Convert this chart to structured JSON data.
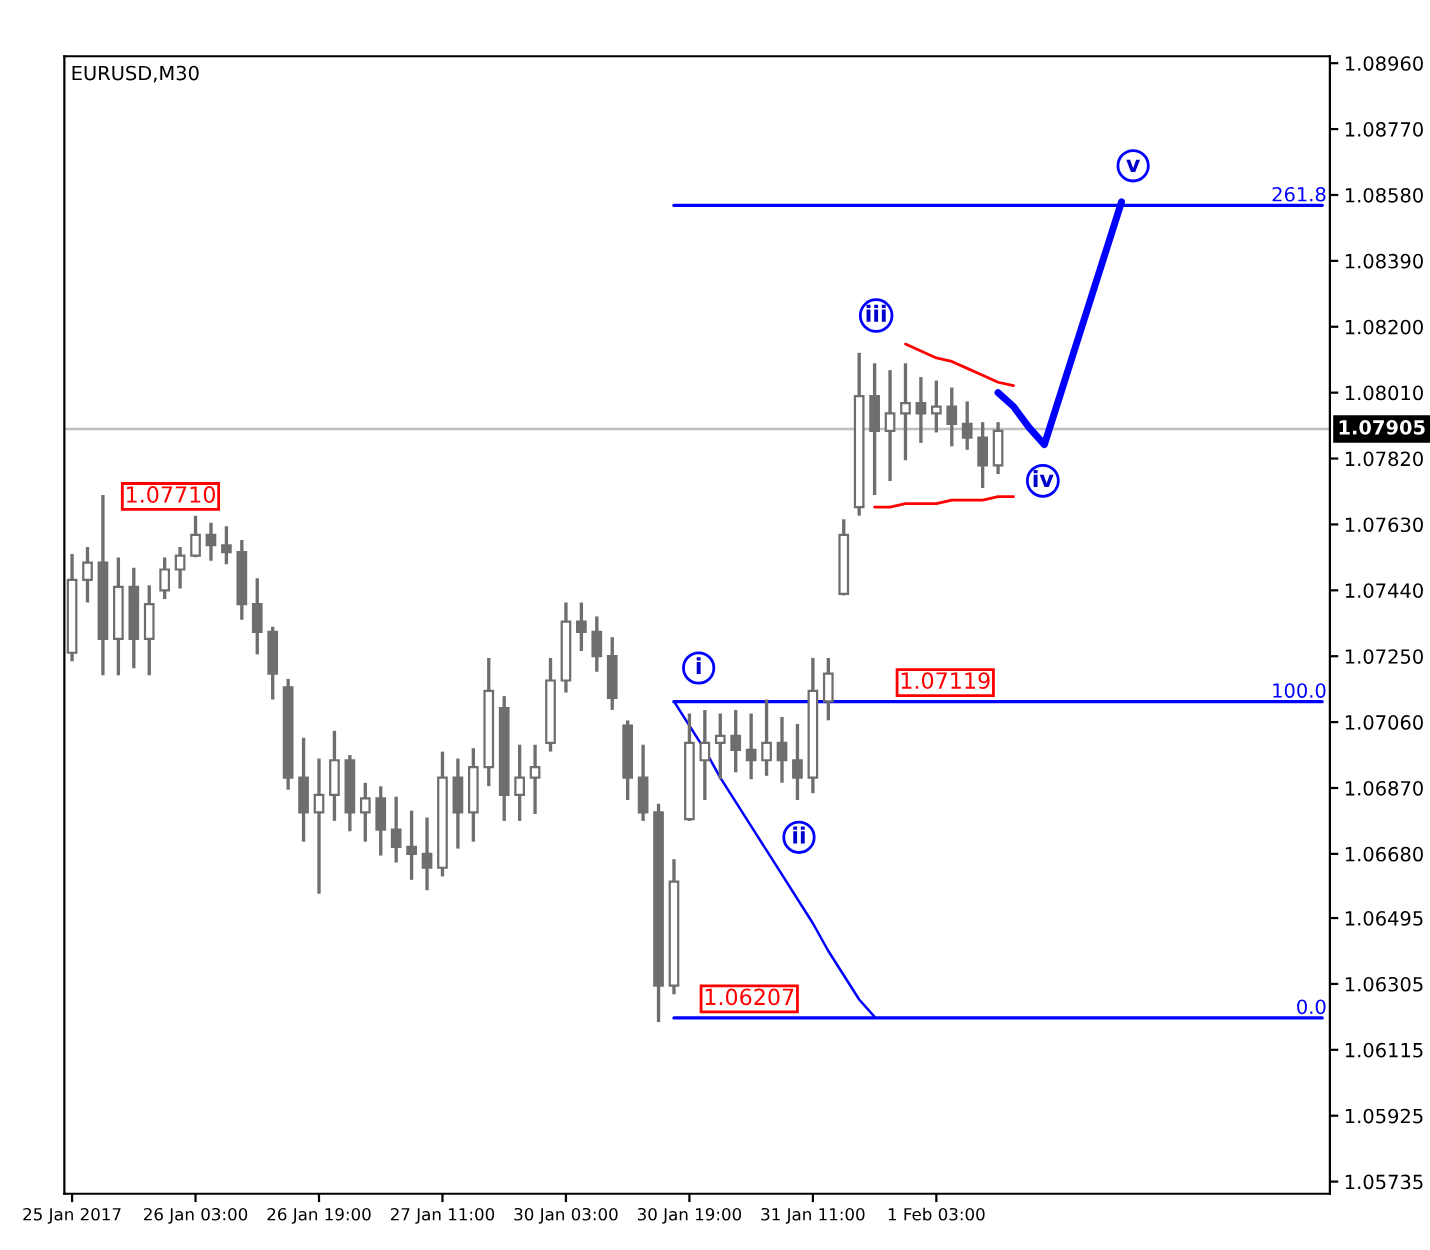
{
  "chart_data": {
    "type": "candlestick",
    "title": "EURUSD,M30",
    "color": "#6e6e6e",
    "categories": [
      "25 Jan 2017",
      null,
      null,
      null,
      null,
      null,
      null,
      null,
      "26 Jan 03:00",
      null,
      null,
      null,
      null,
      null,
      null,
      null,
      "26 Jan 19:00",
      null,
      null,
      null,
      null,
      null,
      null,
      null,
      "27 Jan 11:00",
      null,
      null,
      null,
      null,
      null,
      null,
      null,
      "30 Jan 03:00",
      null,
      null,
      null,
      null,
      null,
      null,
      null,
      "30 Jan 19:00",
      null,
      null,
      null,
      null,
      null,
      null,
      null,
      "31 Jan 11:00",
      null,
      null,
      null,
      null,
      null,
      null,
      null,
      "1 Feb 03:00",
      null,
      null,
      null,
      null,
      null,
      null,
      null,
      null,
      null,
      null,
      null,
      null,
      null,
      null,
      null,
      null,
      null,
      null,
      null,
      null,
      null,
      null,
      null,
      null,
      null
    ],
    "ohlc": [
      [
        1.0726,
        1.0754,
        1.0724,
        1.0747
      ],
      [
        1.0747,
        1.0756,
        1.0741,
        1.0752
      ],
      [
        1.0752,
        1.0771,
        1.072,
        1.073
      ],
      [
        1.073,
        1.0753,
        1.072,
        1.0745
      ],
      [
        1.0745,
        1.075,
        1.0722,
        1.073
      ],
      [
        1.073,
        1.0745,
        1.072,
        1.074
      ],
      [
        1.0744,
        1.0753,
        1.0742,
        1.075
      ],
      [
        1.075,
        1.0756,
        1.0745,
        1.0754
      ],
      [
        1.0754,
        1.0765,
        1.0754,
        1.076
      ],
      [
        1.076,
        1.0763,
        1.0753,
        1.0757
      ],
      [
        1.0757,
        1.0762,
        1.0752,
        1.0755
      ],
      [
        1.0755,
        1.0758,
        1.0736,
        1.074
      ],
      [
        1.074,
        1.0747,
        1.0726,
        1.0732
      ],
      [
        1.0732,
        1.0733,
        1.0713,
        1.072
      ],
      [
        1.0716,
        1.0718,
        1.0687,
        1.069
      ],
      [
        1.069,
        1.0701,
        1.0672,
        1.068
      ],
      [
        1.068,
        1.0695,
        1.0657,
        1.0685
      ],
      [
        1.0685,
        1.0703,
        1.0678,
        1.0695
      ],
      [
        1.0695,
        1.0696,
        1.0675,
        1.068
      ],
      [
        1.068,
        1.0688,
        1.0672,
        1.0684
      ],
      [
        1.0684,
        1.0687,
        1.0668,
        1.0675
      ],
      [
        1.0675,
        1.0684,
        1.0666,
        1.067
      ],
      [
        1.067,
        1.068,
        1.0661,
        1.0668
      ],
      [
        1.0668,
        1.0678,
        1.0658,
        1.0664
      ],
      [
        1.0664,
        1.0697,
        1.0662,
        1.069
      ],
      [
        1.069,
        1.0695,
        1.067,
        1.068
      ],
      [
        1.068,
        1.0698,
        1.0672,
        1.0693
      ],
      [
        1.0693,
        1.0724,
        1.0688,
        1.0715
      ],
      [
        1.071,
        1.0713,
        1.0678,
        1.0685
      ],
      [
        1.0685,
        1.0699,
        1.0678,
        1.069
      ],
      [
        1.069,
        1.0699,
        1.068,
        1.0693
      ],
      [
        1.07,
        1.0724,
        1.0698,
        1.0718
      ],
      [
        1.0718,
        1.074,
        1.0715,
        1.0735
      ],
      [
        1.0735,
        1.074,
        1.0727,
        1.0732
      ],
      [
        1.0732,
        1.0736,
        1.0721,
        1.0725
      ],
      [
        1.0725,
        1.073,
        1.071,
        1.0713
      ],
      [
        1.0705,
        1.0706,
        1.0684,
        1.069
      ],
      [
        1.069,
        1.0699,
        1.0678,
        1.068
      ],
      [
        1.068,
        1.0682,
        1.062,
        1.063
      ],
      [
        1.063,
        1.0666,
        1.0628,
        1.066
      ],
      [
        1.0678,
        1.0708,
        1.0678,
        1.07
      ],
      [
        1.0695,
        1.0709,
        1.0684,
        1.07
      ],
      [
        1.07,
        1.0708,
        1.069,
        1.0702
      ],
      [
        1.0702,
        1.0709,
        1.0692,
        1.0698
      ],
      [
        1.0698,
        1.0708,
        1.069,
        1.0695
      ],
      [
        1.0695,
        1.0712,
        1.0691,
        1.07
      ],
      [
        1.07,
        1.0707,
        1.0689,
        1.0695
      ],
      [
        1.0695,
        1.0705,
        1.0684,
        1.069
      ],
      [
        1.069,
        1.0724,
        1.0686,
        1.0715
      ],
      [
        1.0712,
        1.0724,
        1.0707,
        1.072
      ],
      [
        1.0743,
        1.0764,
        1.0743,
        1.076
      ],
      [
        1.0768,
        1.0812,
        1.0766,
        1.08
      ],
      [
        1.08,
        1.0809,
        1.0772,
        1.079
      ],
      [
        1.079,
        1.0807,
        1.0776,
        1.0795
      ],
      [
        1.0795,
        1.0809,
        1.0782,
        1.0798
      ],
      [
        1.0798,
        1.0805,
        1.0787,
        1.0795
      ],
      [
        1.0795,
        1.0804,
        1.079,
        1.0797
      ],
      [
        1.0797,
        1.0802,
        1.0786,
        1.0792
      ],
      [
        1.0792,
        1.0798,
        1.0785,
        1.0788
      ],
      [
        1.0788,
        1.0792,
        1.0774,
        1.078
      ],
      [
        1.078,
        1.0792,
        1.0778,
        1.079
      ],
      null,
      null,
      null,
      null,
      null,
      null,
      null,
      null,
      null,
      null,
      null,
      null,
      null,
      null,
      null,
      null,
      null,
      null,
      null,
      null,
      null
    ],
    "series": [
      {
        "type": "line",
        "name": "261.8",
        "color": "#0000ff",
        "values": [
          null,
          null,
          null,
          null,
          null,
          null,
          null,
          null,
          null,
          null,
          null,
          null,
          null,
          null,
          null,
          null,
          null,
          null,
          null,
          null,
          null,
          null,
          null,
          null,
          null,
          null,
          null,
          null,
          null,
          null,
          null,
          null,
          null,
          null,
          null,
          null,
          null,
          null,
          null,
          1.0855,
          1.0855,
          1.0855,
          1.0855,
          1.0855,
          1.0855,
          1.0855,
          1.0855,
          1.0855,
          1.0855,
          1.0855,
          1.0855,
          1.0855,
          1.0855,
          1.0855,
          1.0855,
          1.0855,
          1.0855,
          1.0855,
          1.0855,
          1.0855,
          1.0855,
          1.0855,
          1.0855,
          1.0855,
          1.0855,
          1.0855,
          1.0855,
          1.0855,
          1.0855,
          1.0855,
          1.0855,
          1.0855,
          1.0855,
          1.0855,
          1.0855,
          1.0855,
          1.0855,
          1.0855,
          1.0855,
          1.0855,
          1.0855,
          1.0855
        ]
      },
      {
        "type": "line",
        "name": "100.0",
        "color": "#0000ff",
        "values": [
          null,
          null,
          null,
          null,
          null,
          null,
          null,
          null,
          null,
          null,
          null,
          null,
          null,
          null,
          null,
          null,
          null,
          null,
          null,
          null,
          null,
          null,
          null,
          null,
          null,
          null,
          null,
          null,
          null,
          null,
          null,
          null,
          null,
          null,
          null,
          null,
          null,
          null,
          null,
          1.07119,
          1.07119,
          1.07119,
          1.07119,
          1.07119,
          1.07119,
          1.07119,
          1.07119,
          1.07119,
          1.07119,
          1.07119,
          1.07119,
          1.07119,
          1.07119,
          1.07119,
          1.07119,
          1.07119,
          1.07119,
          1.07119,
          1.07119,
          1.07119,
          1.07119,
          1.07119,
          1.07119,
          1.07119,
          1.07119,
          1.07119,
          1.07119,
          1.07119,
          1.07119,
          1.07119,
          1.07119,
          1.07119,
          1.07119,
          1.07119,
          1.07119,
          1.07119,
          1.07119,
          1.07119,
          1.07119,
          1.07119,
          1.07119,
          1.07119
        ]
      },
      {
        "type": "line",
        "name": "0.0",
        "color": "#0000ff",
        "values": [
          null,
          null,
          null,
          null,
          null,
          null,
          null,
          null,
          null,
          null,
          null,
          null,
          null,
          null,
          null,
          null,
          null,
          null,
          null,
          null,
          null,
          null,
          null,
          null,
          null,
          null,
          null,
          null,
          null,
          null,
          null,
          null,
          null,
          null,
          null,
          null,
          null,
          null,
          null,
          1.06207,
          1.06207,
          1.06207,
          1.06207,
          1.06207,
          1.06207,
          1.06207,
          1.06207,
          1.06207,
          1.06207,
          1.06207,
          1.06207,
          1.06207,
          1.06207,
          1.06207,
          1.06207,
          1.06207,
          1.06207,
          1.06207,
          1.06207,
          1.06207,
          1.06207,
          1.06207,
          1.06207,
          1.06207,
          1.06207,
          1.06207,
          1.06207,
          1.06207,
          1.06207,
          1.06207,
          1.06207,
          1.06207,
          1.06207,
          1.06207,
          1.06207,
          1.06207,
          1.06207,
          1.06207,
          1.06207,
          1.06207,
          1.06207,
          1.06207
        ]
      },
      {
        "type": "line",
        "color": "#0000ff",
        "values": [
          null,
          null,
          null,
          null,
          null,
          null,
          null,
          null,
          null,
          null,
          null,
          null,
          null,
          null,
          null,
          null,
          null,
          null,
          null,
          null,
          null,
          null,
          null,
          null,
          null,
          null,
          null,
          null,
          null,
          null,
          null,
          null,
          null,
          null,
          null,
          null,
          null,
          null,
          null,
          1.0712,
          1.0705,
          1.0698,
          1.069,
          1.0683,
          1.0676,
          1.0669,
          1.0662,
          1.0655,
          1.0648,
          1.064,
          1.0633,
          1.0626,
          1.0621,
          null,
          null,
          null,
          null,
          null,
          null,
          null,
          null,
          null,
          null,
          null,
          null,
          null,
          null,
          null,
          null,
          null,
          null,
          null,
          null,
          null,
          null,
          null,
          null,
          null,
          null,
          null,
          null,
          null
        ]
      },
      {
        "type": "line",
        "color": "#ff0000",
        "values": [
          null,
          null,
          null,
          null,
          null,
          null,
          null,
          null,
          null,
          null,
          null,
          null,
          null,
          null,
          null,
          null,
          null,
          null,
          null,
          null,
          null,
          null,
          null,
          null,
          null,
          null,
          null,
          null,
          null,
          null,
          null,
          null,
          null,
          null,
          null,
          null,
          null,
          null,
          null,
          null,
          null,
          null,
          null,
          null,
          null,
          null,
          null,
          null,
          null,
          null,
          null,
          null,
          null,
          null,
          1.0815,
          1.0813,
          1.0811,
          1.081,
          1.0808,
          1.0806,
          1.0804,
          1.0803,
          null,
          null,
          null,
          null,
          null,
          null,
          null,
          null,
          null,
          null,
          null,
          null,
          null,
          null,
          null,
          null,
          null,
          null,
          null,
          null
        ]
      },
      {
        "type": "line",
        "color": "#ff0000",
        "values": [
          null,
          null,
          null,
          null,
          null,
          null,
          null,
          null,
          null,
          null,
          null,
          null,
          null,
          null,
          null,
          null,
          null,
          null,
          null,
          null,
          null,
          null,
          null,
          null,
          null,
          null,
          null,
          null,
          null,
          null,
          null,
          null,
          null,
          null,
          null,
          null,
          null,
          null,
          null,
          null,
          null,
          null,
          null,
          null,
          null,
          null,
          null,
          null,
          null,
          null,
          null,
          null,
          1.0768,
          1.0768,
          1.0769,
          1.0769,
          1.0769,
          1.077,
          1.077,
          1.077,
          1.0771,
          1.0771,
          null,
          null,
          null,
          null,
          null,
          null,
          null,
          null,
          null,
          null,
          null,
          null,
          null,
          null,
          null,
          null,
          null,
          null,
          null,
          null
        ]
      },
      {
        "type": "line",
        "color": "#0000ff",
        "values": [
          null,
          null,
          null,
          null,
          null,
          null,
          null,
          null,
          null,
          null,
          null,
          null,
          null,
          null,
          null,
          null,
          null,
          null,
          null,
          null,
          null,
          null,
          null,
          null,
          null,
          null,
          null,
          null,
          null,
          null,
          null,
          null,
          null,
          null,
          null,
          null,
          null,
          null,
          null,
          null,
          null,
          null,
          null,
          null,
          null,
          null,
          null,
          null,
          null,
          null,
          null,
          null,
          null,
          null,
          null,
          null,
          null,
          null,
          null,
          null,
          1.0801,
          1.0797,
          1.0791,
          1.0786,
          1.08,
          1.0814,
          1.0828,
          1.0842,
          1.0856,
          null,
          null,
          null,
          null,
          null,
          null,
          null,
          null,
          null,
          null,
          null,
          null,
          null
        ]
      }
    ],
    "ref_lines": [
      {
        "axis": "y",
        "value": 1.07905,
        "label": "1.07905",
        "color": "#c0c0c0"
      }
    ],
    "annotations": [
      "1.07710",
      {
        "text": "1.07119",
        "y": 1.07119
      },
      {
        "text": "1.06207",
        "y": 1.06207
      },
      {
        "text": "i",
        "y": 1.0712
      },
      {
        "text": "ii",
        "y": 1.0684
      },
      "iii",
      {
        "text": "iv",
        "y": 1.0786
      },
      {
        "text": "v",
        "y": 1.0856
      }
    ],
    "ylim": [
      1.057,
      1.0898
    ],
    "yticks": [
      {
        "value": 1.0896,
        "label": "1.08960"
      },
      {
        "value": 1.0877,
        "label": "1.08770"
      },
      {
        "value": 1.0858,
        "label": "1.08580"
      },
      {
        "value": 1.0839,
        "label": "1.08390"
      },
      {
        "value": 1.082,
        "label": "1.08200"
      },
      {
        "value": 1.0801,
        "label": "1.08010"
      },
      {
        "value": 1.0782,
        "label": "1.07820"
      },
      {
        "value": 1.0763,
        "label": "1.07630"
      },
      {
        "value": 1.0744,
        "label": "1.07440"
      },
      {
        "value": 1.0725,
        "label": "1.07250"
      },
      {
        "value": 1.0706,
        "label": "1.07060"
      },
      {
        "value": 1.0687,
        "label": "1.06870"
      },
      {
        "value": 1.0668,
        "label": "1.06680"
      },
      {
        "value": 1.06495,
        "label": "1.06495"
      },
      {
        "value": 1.06305,
        "label": "1.06305"
      },
      {
        "value": 1.06115,
        "label": "1.06115"
      },
      {
        "value": 1.05925,
        "label": "1.05925"
      },
      {
        "value": 1.05735,
        "label": "1.05735"
      }
    ]
  }
}
